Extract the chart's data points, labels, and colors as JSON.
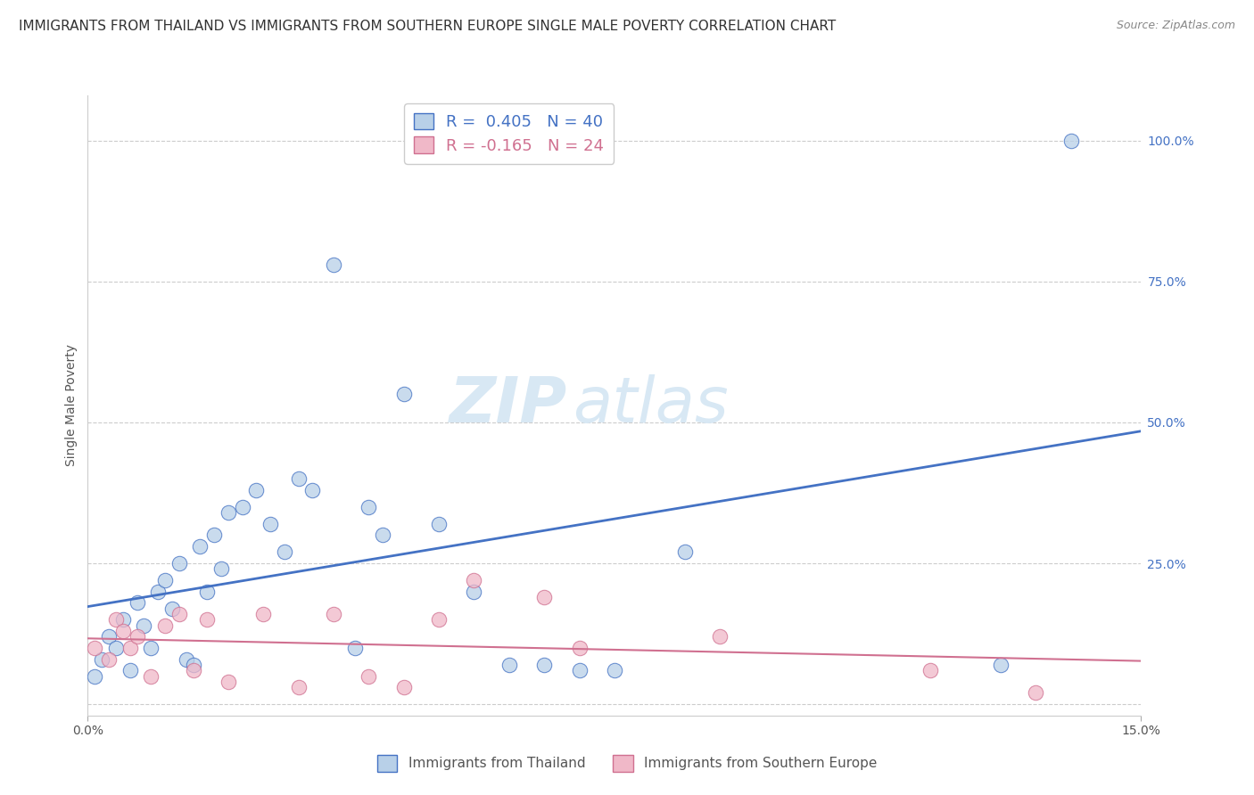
{
  "title": "IMMIGRANTS FROM THAILAND VS IMMIGRANTS FROM SOUTHERN EUROPE SINGLE MALE POVERTY CORRELATION CHART",
  "source": "Source: ZipAtlas.com",
  "ylabel": "Single Male Poverty",
  "xlim": [
    0.0,
    0.15
  ],
  "ylim": [
    -0.02,
    1.08
  ],
  "ytick_values": [
    0.0,
    0.25,
    0.5,
    0.75,
    1.0
  ],
  "right_ytick_labels": [
    "100.0%",
    "75.0%",
    "50.0%",
    "25.0%"
  ],
  "right_ytick_values": [
    1.0,
    0.75,
    0.5,
    0.25
  ],
  "grid_color": "#cccccc",
  "background_color": "#ffffff",
  "thailand_color": "#b8d0e8",
  "thailand_line_color": "#4472c4",
  "southern_europe_color": "#f0b8c8",
  "southern_europe_line_color": "#d07090",
  "R_thailand": 0.405,
  "N_thailand": 40,
  "R_southern_europe": -0.165,
  "N_southern_europe": 24,
  "legend_label_thailand": "Immigrants from Thailand",
  "legend_label_southern_europe": "Immigrants from Southern Europe",
  "watermark_zip": "ZIP",
  "watermark_atlas": "atlas",
  "title_fontsize": 11,
  "right_label_color": "#4472c4",
  "thailand_x": [
    0.001,
    0.002,
    0.003,
    0.004,
    0.005,
    0.006,
    0.007,
    0.008,
    0.009,
    0.01,
    0.011,
    0.012,
    0.013,
    0.014,
    0.015,
    0.016,
    0.017,
    0.018,
    0.019,
    0.02,
    0.022,
    0.024,
    0.026,
    0.028,
    0.03,
    0.032,
    0.035,
    0.038,
    0.04,
    0.042,
    0.045,
    0.05,
    0.055,
    0.06,
    0.065,
    0.07,
    0.075,
    0.085,
    0.13,
    0.14
  ],
  "thailand_y": [
    0.05,
    0.08,
    0.12,
    0.1,
    0.15,
    0.06,
    0.18,
    0.14,
    0.1,
    0.2,
    0.22,
    0.17,
    0.25,
    0.08,
    0.07,
    0.28,
    0.2,
    0.3,
    0.24,
    0.34,
    0.35,
    0.38,
    0.32,
    0.27,
    0.4,
    0.38,
    0.78,
    0.1,
    0.35,
    0.3,
    0.55,
    0.32,
    0.2,
    0.07,
    0.07,
    0.06,
    0.06,
    0.27,
    0.07,
    1.0
  ],
  "southern_europe_x": [
    0.001,
    0.003,
    0.004,
    0.005,
    0.006,
    0.007,
    0.009,
    0.011,
    0.013,
    0.015,
    0.017,
    0.02,
    0.025,
    0.03,
    0.035,
    0.04,
    0.045,
    0.05,
    0.055,
    0.065,
    0.07,
    0.09,
    0.12,
    0.135
  ],
  "southern_europe_y": [
    0.1,
    0.08,
    0.15,
    0.13,
    0.1,
    0.12,
    0.05,
    0.14,
    0.16,
    0.06,
    0.15,
    0.04,
    0.16,
    0.03,
    0.16,
    0.05,
    0.03,
    0.15,
    0.22,
    0.19,
    0.1,
    0.12,
    0.06,
    0.02
  ]
}
